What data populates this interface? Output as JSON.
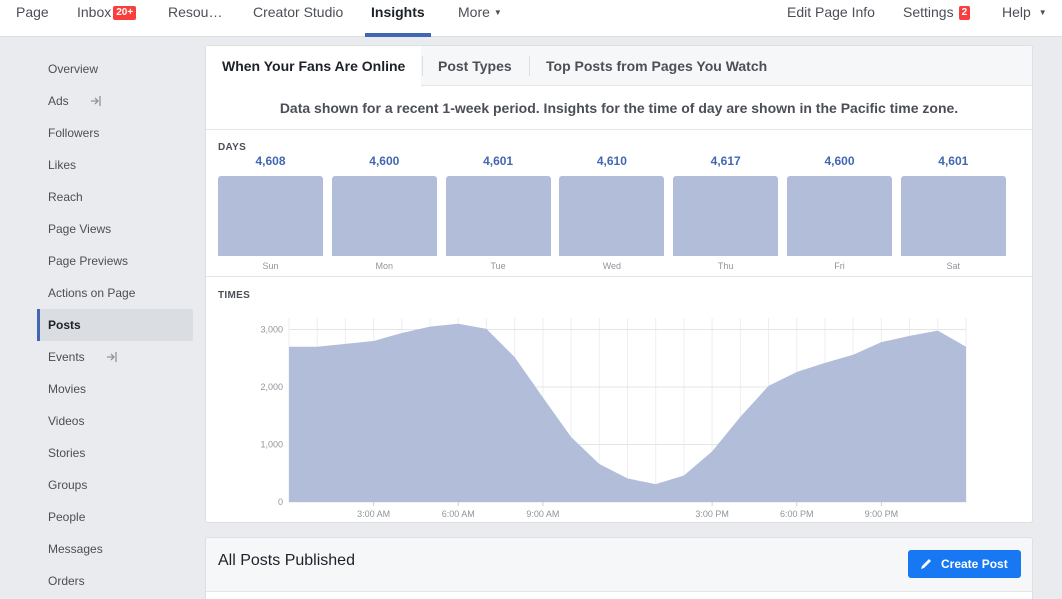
{
  "topnav": {
    "items": [
      {
        "label": "Page"
      },
      {
        "label": "Inbox",
        "badge": "20+"
      },
      {
        "label": "Resou…"
      },
      {
        "label": "Creator Studio"
      },
      {
        "label": "Insights"
      },
      {
        "label": "More"
      },
      {
        "label": "Edit Page Info"
      },
      {
        "label": "Settings",
        "badge": "2"
      },
      {
        "label": "Help"
      }
    ]
  },
  "sidebar": {
    "items": [
      {
        "label": "Overview"
      },
      {
        "label": "Ads"
      },
      {
        "label": "Followers"
      },
      {
        "label": "Likes"
      },
      {
        "label": "Reach"
      },
      {
        "label": "Page Views"
      },
      {
        "label": "Page Previews"
      },
      {
        "label": "Actions on Page"
      },
      {
        "label": "Posts"
      },
      {
        "label": "Events"
      },
      {
        "label": "Movies"
      },
      {
        "label": "Videos"
      },
      {
        "label": "Stories"
      },
      {
        "label": "Groups"
      },
      {
        "label": "People"
      },
      {
        "label": "Messages"
      },
      {
        "label": "Orders"
      }
    ]
  },
  "main": {
    "tabs": [
      {
        "label": "When Your Fans Are Online"
      },
      {
        "label": "Post Types"
      },
      {
        "label": "Top Posts from Pages You Watch"
      }
    ],
    "notice": "Data shown for a recent 1-week period. Insights for the time of day are shown in the Pacific time zone.",
    "days_label": "DAYS",
    "times_label": "TIMES"
  },
  "posts_card": {
    "title": "All Posts Published",
    "create_label": "Create Post"
  },
  "colors": {
    "accent": "#4267b2",
    "bar_fill": "#b1bdd9",
    "button": "#1877f2",
    "badge": "#fa3e3e"
  },
  "chart_data": [
    {
      "type": "bar",
      "categories": [
        "Sun",
        "Mon",
        "Tue",
        "Wed",
        "Thu",
        "Fri",
        "Sat"
      ],
      "values": [
        4608,
        4600,
        4601,
        4610,
        4617,
        4600,
        4601
      ],
      "value_labels": [
        "4,608",
        "4,600",
        "4,601",
        "4,610",
        "4,617",
        "4,600",
        "4,601"
      ],
      "title": "DAYS"
    },
    {
      "type": "area",
      "title": "TIMES",
      "x": [
        0,
        1,
        2,
        3,
        4,
        5,
        6,
        7,
        8,
        9,
        10,
        11,
        12,
        13,
        14,
        15,
        16,
        17,
        18,
        19,
        20,
        21,
        22,
        23,
        24
      ],
      "values": [
        2700,
        2700,
        2750,
        2800,
        2940,
        3050,
        3100,
        3010,
        2520,
        1820,
        1130,
        660,
        410,
        310,
        460,
        880,
        1480,
        2020,
        2260,
        2420,
        2560,
        2780,
        2890,
        2980,
        2700
      ],
      "x_tick_labels": [
        "3:00 AM",
        "6:00 AM",
        "9:00 AM",
        "3:00 PM",
        "6:00 PM",
        "9:00 PM"
      ],
      "x_tick_positions": [
        3,
        6,
        9,
        15,
        18,
        21
      ],
      "y_ticks": [
        0,
        1000,
        2000,
        3000
      ],
      "y_tick_labels": [
        "0",
        "1,000",
        "2,000",
        "3,000"
      ],
      "ylim": [
        0,
        3200
      ],
      "xlim": [
        0,
        24
      ],
      "grid": true
    }
  ]
}
